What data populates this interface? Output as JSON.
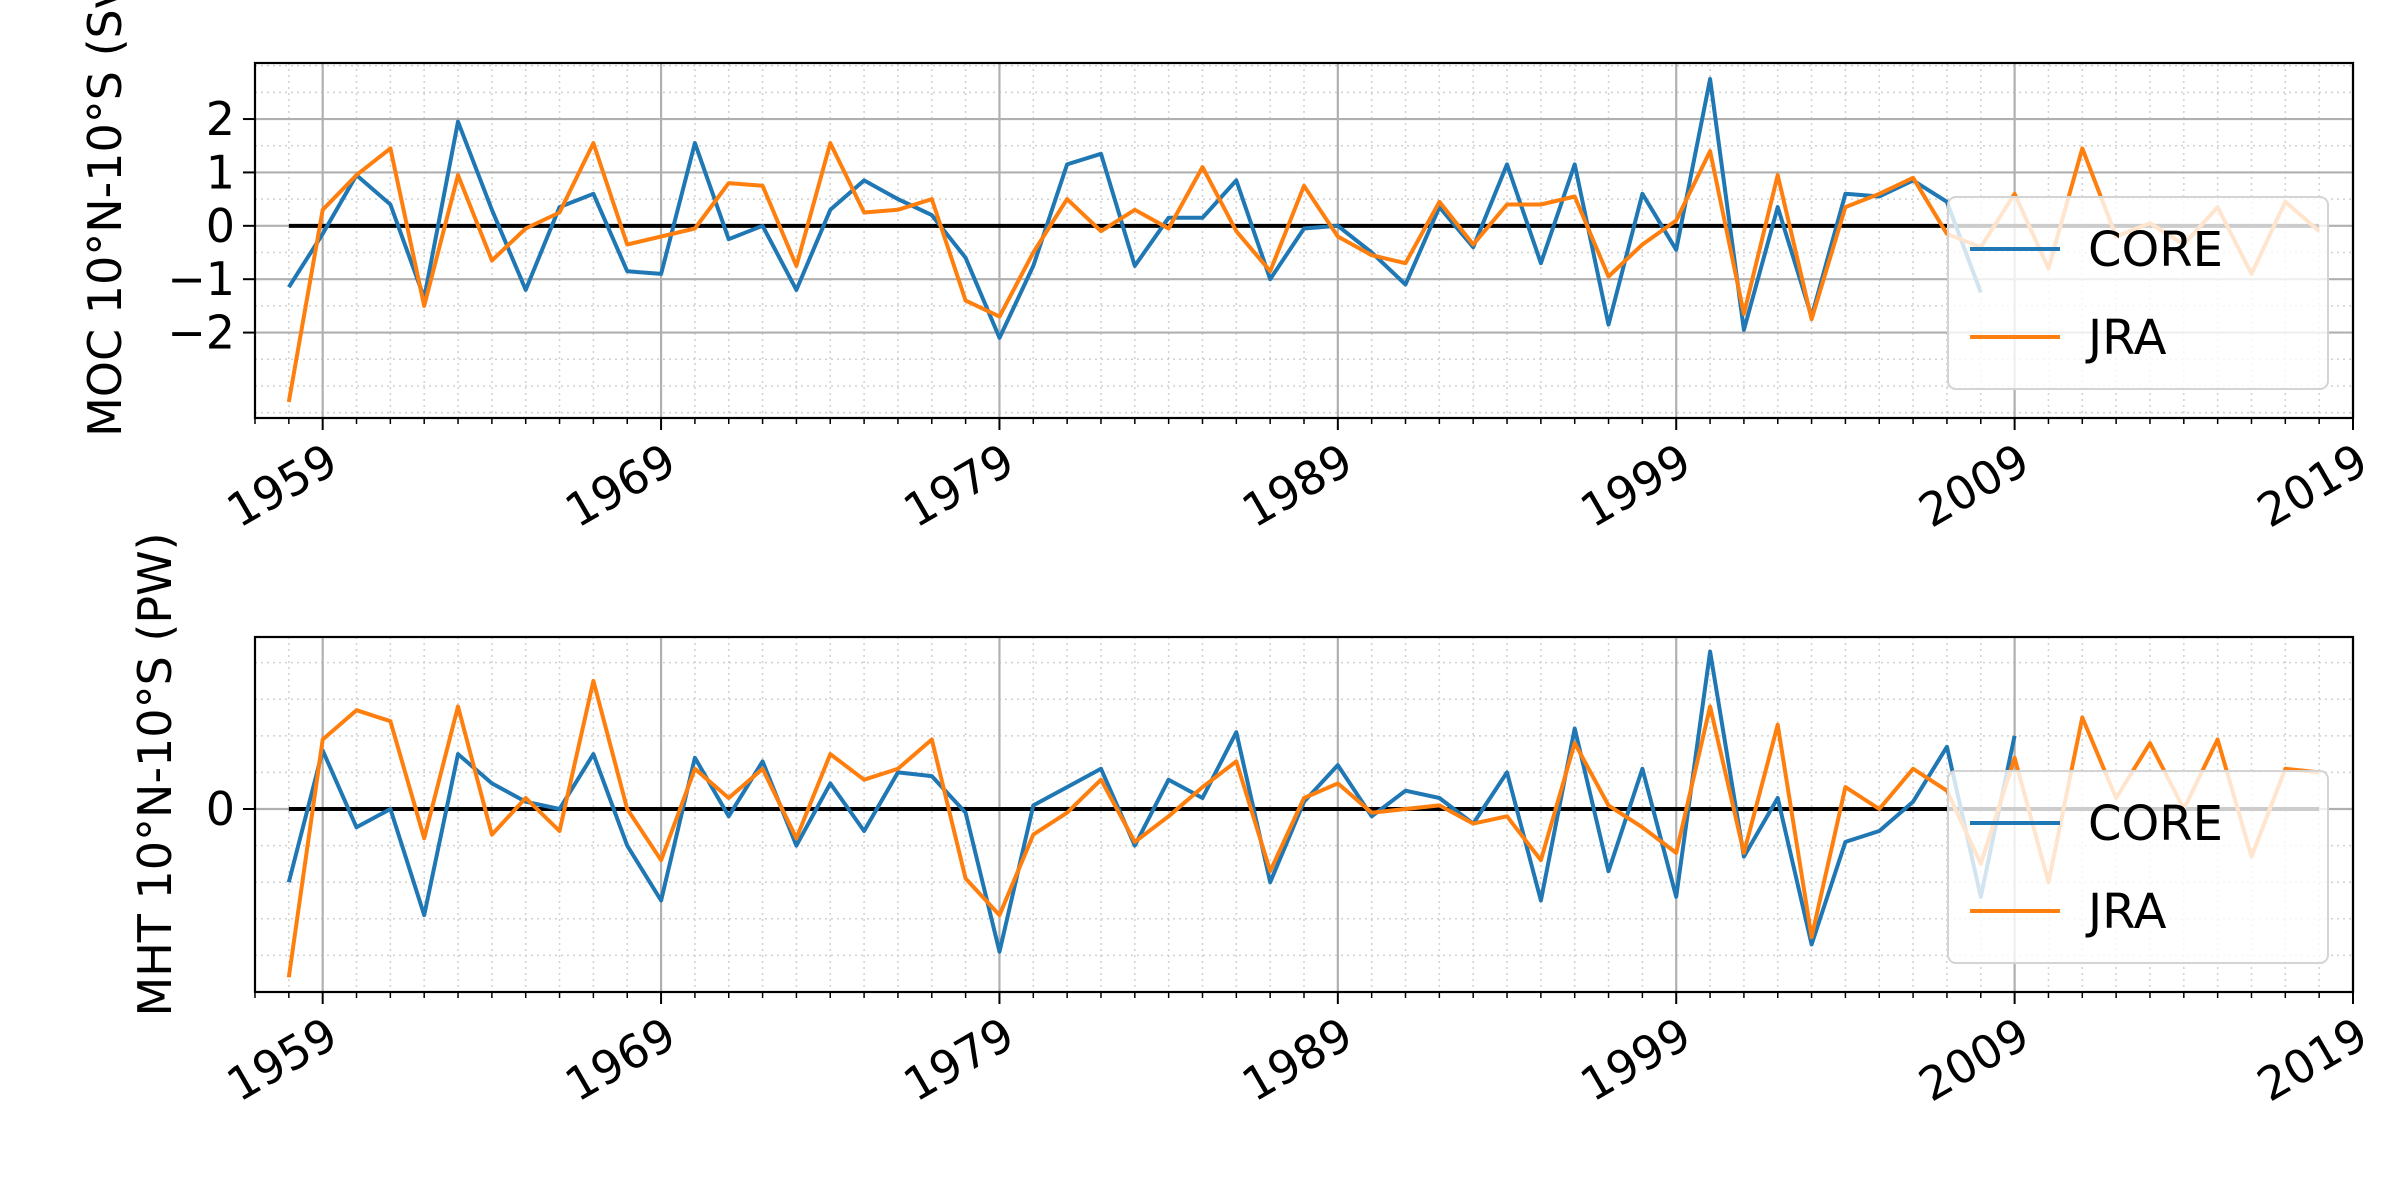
{
  "chart_data": [
    {
      "type": "line",
      "ylabel": "MOC 10°N-10°S (Sv)",
      "xlim": [
        1957,
        2019
      ],
      "ylim": [
        -3.6,
        3.05
      ],
      "x_ticks": [
        1959,
        1969,
        1979,
        1989,
        1999,
        2009,
        2019
      ],
      "x_tick_labels": [
        "1959",
        "1969",
        "1979",
        "1989",
        "1999",
        "2009",
        "2019"
      ],
      "y_ticks": [
        2,
        1,
        0,
        -1,
        -2
      ],
      "y_tick_labels": [
        "2",
        "1",
        "0",
        "−1",
        "−2"
      ],
      "grid": true,
      "zero_line": true,
      "legend": "right",
      "x": [
        1958,
        1959,
        1960,
        1961,
        1962,
        1963,
        1964,
        1965,
        1966,
        1967,
        1968,
        1969,
        1970,
        1971,
        1972,
        1973,
        1974,
        1975,
        1976,
        1977,
        1978,
        1979,
        1980,
        1981,
        1982,
        1983,
        1984,
        1985,
        1986,
        1987,
        1988,
        1989,
        1990,
        1991,
        1992,
        1993,
        1994,
        1995,
        1996,
        1997,
        1998,
        1999,
        2000,
        2001,
        2002,
        2003,
        2004,
        2005,
        2006,
        2007,
        2008,
        2009,
        2010,
        2011,
        2012,
        2013,
        2014,
        2015,
        2016,
        2017,
        2018
      ],
      "series": [
        {
          "name": "CORE",
          "color": "#1f77b4",
          "values": [
            -1.15,
            -0.15,
            0.95,
            0.4,
            -1.35,
            1.95,
            0.3,
            -1.2,
            0.35,
            0.6,
            -0.85,
            -0.9,
            1.55,
            -0.25,
            0.0,
            -1.2,
            0.3,
            0.85,
            0.5,
            0.2,
            -0.6,
            -2.1,
            -0.75,
            1.15,
            1.35,
            -0.75,
            0.15,
            0.15,
            0.85,
            -1.0,
            -0.05,
            0.0,
            -0.5,
            -1.1,
            0.35,
            -0.4,
            1.15,
            -0.7,
            1.15,
            -1.85,
            0.6,
            -0.45,
            2.75,
            -1.95,
            0.35,
            -1.7,
            0.6,
            0.55,
            0.85,
            0.45,
            -1.25,
            null,
            null,
            null,
            null,
            null,
            null,
            null,
            null,
            null,
            null
          ]
        },
        {
          "name": "JRA",
          "color": "#ff7f0e",
          "values": [
            -3.3,
            0.3,
            0.95,
            1.45,
            -1.5,
            0.95,
            -0.65,
            -0.05,
            0.25,
            1.55,
            -0.35,
            -0.2,
            -0.05,
            0.8,
            0.75,
            -0.75,
            1.55,
            0.25,
            0.3,
            0.5,
            -1.4,
            -1.7,
            -0.5,
            0.5,
            -0.1,
            0.3,
            -0.05,
            1.1,
            -0.1,
            -0.85,
            0.75,
            -0.2,
            -0.55,
            -0.7,
            0.45,
            -0.35,
            0.4,
            0.4,
            0.55,
            -0.95,
            -0.35,
            0.1,
            1.4,
            -1.65,
            0.95,
            -1.75,
            0.35,
            0.6,
            0.9,
            -0.15,
            -0.4,
            0.6,
            -0.8,
            1.45,
            -0.2,
            0.05,
            -0.35,
            0.35,
            -0.9,
            0.45,
            -0.1
          ]
        }
      ]
    },
    {
      "type": "line",
      "ylabel": "MHT 10°N-10°S (PW)",
      "xlim": [
        1957,
        2019
      ],
      "ylim": [
        -0.5,
        0.47
      ],
      "x_ticks": [
        1959,
        1969,
        1979,
        1989,
        1999,
        2009,
        2019
      ],
      "x_tick_labels": [
        "1959",
        "1969",
        "1979",
        "1989",
        "1999",
        "2009",
        "2019"
      ],
      "y_ticks": [
        0
      ],
      "y_tick_labels": [
        "0"
      ],
      "grid": true,
      "zero_line": true,
      "legend": "right",
      "x": [
        1958,
        1959,
        1960,
        1961,
        1962,
        1963,
        1964,
        1965,
        1966,
        1967,
        1968,
        1969,
        1970,
        1971,
        1972,
        1973,
        1974,
        1975,
        1976,
        1977,
        1978,
        1979,
        1980,
        1981,
        1982,
        1983,
        1984,
        1985,
        1986,
        1987,
        1988,
        1989,
        1990,
        1991,
        1992,
        1993,
        1994,
        1995,
        1996,
        1997,
        1998,
        1999,
        2000,
        2001,
        2002,
        2003,
        2004,
        2005,
        2006,
        2007,
        2008,
        2009,
        2010,
        2011,
        2012,
        2013,
        2014,
        2015,
        2016,
        2017,
        2018
      ],
      "series": [
        {
          "name": "CORE",
          "color": "#1f77b4",
          "values": [
            -0.2,
            0.16,
            -0.05,
            0.0,
            -0.29,
            0.15,
            0.07,
            0.02,
            0.0,
            0.15,
            -0.1,
            -0.25,
            0.14,
            -0.02,
            0.13,
            -0.1,
            0.07,
            -0.06,
            0.1,
            0.09,
            -0.01,
            -0.39,
            0.01,
            0.06,
            0.11,
            -0.1,
            0.08,
            0.03,
            0.21,
            -0.2,
            0.02,
            0.12,
            -0.02,
            0.05,
            0.03,
            -0.04,
            0.1,
            -0.25,
            0.22,
            -0.17,
            0.11,
            -0.24,
            0.43,
            -0.13,
            0.03,
            -0.37,
            -0.09,
            -0.06,
            0.02,
            0.17,
            -0.24,
            0.2,
            null,
            null,
            null,
            null,
            null,
            null,
            null,
            null,
            null
          ]
        },
        {
          "name": "JRA",
          "color": "#ff7f0e",
          "values": [
            -0.46,
            0.19,
            0.27,
            0.24,
            -0.08,
            0.28,
            -0.07,
            0.03,
            -0.06,
            0.35,
            0.0,
            -0.14,
            0.11,
            0.03,
            0.11,
            -0.08,
            0.15,
            0.08,
            0.11,
            0.19,
            -0.19,
            -0.29,
            -0.07,
            -0.01,
            0.08,
            -0.09,
            -0.02,
            0.06,
            0.13,
            -0.17,
            0.03,
            0.07,
            -0.01,
            0.0,
            0.01,
            -0.04,
            -0.02,
            -0.14,
            0.18,
            0.01,
            -0.05,
            -0.12,
            0.28,
            -0.12,
            0.23,
            -0.35,
            0.06,
            0.0,
            0.11,
            0.05,
            -0.15,
            0.14,
            -0.2,
            0.25,
            0.03,
            0.18,
            0.0,
            0.19,
            -0.13,
            0.11,
            0.1
          ]
        }
      ]
    }
  ]
}
